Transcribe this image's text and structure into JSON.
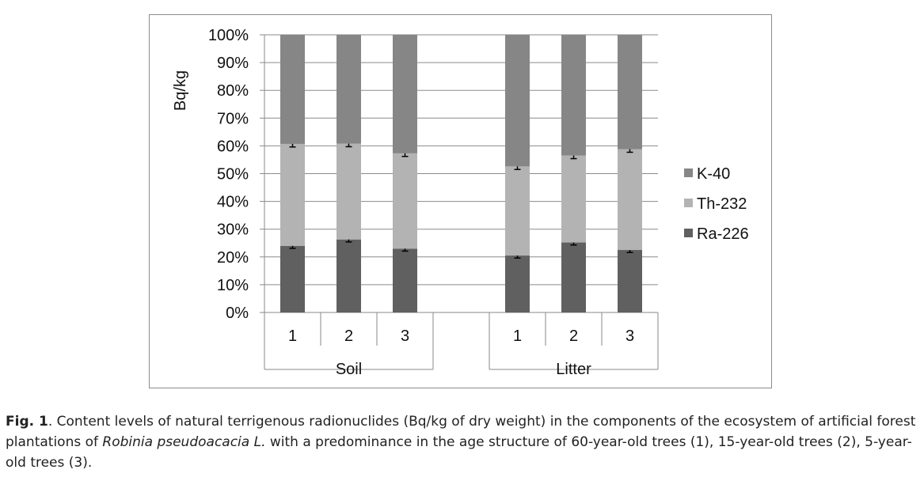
{
  "chart_data": {
    "type": "bar",
    "stacked": true,
    "ylabel": "Bq/kg",
    "ylim": [
      0,
      100
    ],
    "yticks": [
      "0%",
      "10%",
      "20%",
      "30%",
      "40%",
      "50%",
      "60%",
      "70%",
      "80%",
      "90%",
      "100%"
    ],
    "groups": [
      "Soil",
      "Litter"
    ],
    "categories": [
      "1",
      "2",
      "3",
      "1",
      "2",
      "3"
    ],
    "grid": true,
    "legend_position": "right",
    "series": [
      {
        "name": "Ra-226",
        "color": "#606060",
        "values": [
          24,
          26.3,
          23,
          20.5,
          25.2,
          22.5
        ],
        "errors": [
          0.9,
          0.9,
          0.9,
          0.9,
          0.9,
          0.9
        ]
      },
      {
        "name": "Th-232",
        "color": "#b3b3b3",
        "values": [
          36.7,
          34.5,
          34.3,
          32.1,
          31.3,
          36.3
        ],
        "errors": [
          1.1,
          1.1,
          1.1,
          1.1,
          1.1,
          1.1
        ]
      },
      {
        "name": "K-40",
        "color": "#868686",
        "values": [
          39.3,
          39.2,
          42.7,
          47.4,
          43.5,
          41.2
        ],
        "errors": [
          0,
          0,
          0,
          0,
          0,
          0
        ]
      }
    ],
    "legend_order": [
      "K-40",
      "Th-232",
      "Ra-226"
    ]
  },
  "caption": {
    "fig_label": "Fig. 1",
    "text_before_italic": ". Content levels of natural terrigenous radionuclides (Bq/kg of dry weight) in the components of the ecosystem of artificial forest plantations of ",
    "italic": "Robinia pseudoacacia L.",
    "text_after_italic": " with a predominance in the age structure of 60-year-old trees (1), 15-year-old trees (2), 5-year-old trees (3)."
  }
}
